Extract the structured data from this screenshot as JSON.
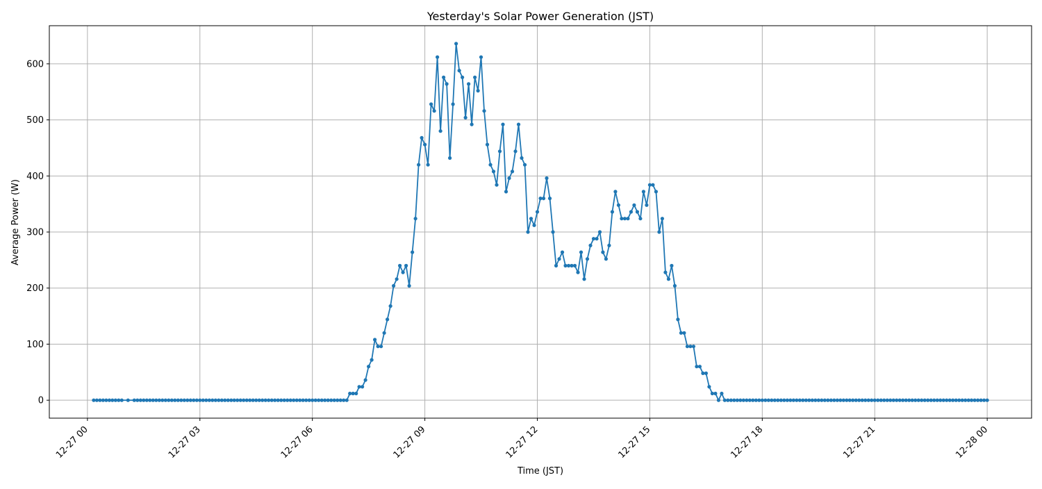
{
  "chart_data": {
    "type": "line",
    "title": "Yesterday's Solar Power Generation (JST)",
    "xlabel": "Time (JST)",
    "ylabel": "Average Power (W)",
    "grid": true,
    "marker": "circle",
    "line_color": "#1f77b4",
    "x_ticks": [
      "12-27 00",
      "12-27 03",
      "12-27 06",
      "12-27 09",
      "12-27 12",
      "12-27 15",
      "12-27 18",
      "12-27 21",
      "12-28 00"
    ],
    "y_ticks": [
      0,
      100,
      200,
      300,
      400,
      500,
      600
    ],
    "xlim": [
      "12-26 22:59",
      "12-28 01:11"
    ],
    "ylim": [
      -32,
      668
    ],
    "night_zero_ranges": [
      {
        "from": "12-27 00:10",
        "to": "12-27 00:55"
      },
      {
        "from": "12-27 01:05",
        "to": "12-27 01:05"
      },
      {
        "from": "12-27 01:15",
        "to": "12-27 06:55"
      },
      {
        "from": "12-27 17:00",
        "to": "12-28 00:00"
      }
    ],
    "day_series": {
      "x": [
        "12-27 07:00",
        "12-27 07:05",
        "12-27 07:10",
        "12-27 07:15",
        "12-27 07:20",
        "12-27 07:25",
        "12-27 07:30",
        "12-27 07:35",
        "12-27 07:40",
        "12-27 07:45",
        "12-27 07:50",
        "12-27 07:55",
        "12-27 08:00",
        "12-27 08:05",
        "12-27 08:10",
        "12-27 08:15",
        "12-27 08:20",
        "12-27 08:25",
        "12-27 08:30",
        "12-27 08:35",
        "12-27 08:40",
        "12-27 08:45",
        "12-27 08:50",
        "12-27 08:55",
        "12-27 09:00",
        "12-27 09:05",
        "12-27 09:10",
        "12-27 09:15",
        "12-27 09:20",
        "12-27 09:25",
        "12-27 09:30",
        "12-27 09:35",
        "12-27 09:40",
        "12-27 09:45",
        "12-27 09:50",
        "12-27 09:55",
        "12-27 10:00",
        "12-27 10:05",
        "12-27 10:10",
        "12-27 10:15",
        "12-27 10:20",
        "12-27 10:25",
        "12-27 10:30",
        "12-27 10:35",
        "12-27 10:40",
        "12-27 10:45",
        "12-27 10:50",
        "12-27 10:55",
        "12-27 11:00",
        "12-27 11:05",
        "12-27 11:10",
        "12-27 11:15",
        "12-27 11:20",
        "12-27 11:25",
        "12-27 11:30",
        "12-27 11:35",
        "12-27 11:40",
        "12-27 11:45",
        "12-27 11:50",
        "12-27 11:55",
        "12-27 12:00",
        "12-27 12:05",
        "12-27 12:10",
        "12-27 12:15",
        "12-27 12:20",
        "12-27 12:25",
        "12-27 12:30",
        "12-27 12:35",
        "12-27 12:40",
        "12-27 12:45",
        "12-27 12:50",
        "12-27 12:55",
        "12-27 13:00",
        "12-27 13:05",
        "12-27 13:10",
        "12-27 13:15",
        "12-27 13:20",
        "12-27 13:25",
        "12-27 13:30",
        "12-27 13:35",
        "12-27 13:40",
        "12-27 13:45",
        "12-27 13:50",
        "12-27 13:55",
        "12-27 14:00",
        "12-27 14:05",
        "12-27 14:10",
        "12-27 14:15",
        "12-27 14:20",
        "12-27 14:25",
        "12-27 14:30",
        "12-27 14:35",
        "12-27 14:40",
        "12-27 14:45",
        "12-27 14:50",
        "12-27 14:55",
        "12-27 15:00",
        "12-27 15:05",
        "12-27 15:10",
        "12-27 15:15",
        "12-27 15:20",
        "12-27 15:25",
        "12-27 15:30",
        "12-27 15:35",
        "12-27 15:40",
        "12-27 15:45",
        "12-27 15:50",
        "12-27 15:55",
        "12-27 16:00",
        "12-27 16:05",
        "12-27 16:10",
        "12-27 16:15",
        "12-27 16:20",
        "12-27 16:25",
        "12-27 16:30",
        "12-27 16:35",
        "12-27 16:40",
        "12-27 16:45",
        "12-27 16:50",
        "12-27 16:55"
      ],
      "y": [
        12,
        12,
        12,
        24,
        24,
        36,
        60,
        72,
        108,
        96,
        96,
        120,
        144,
        168,
        204,
        216,
        240,
        228,
        240,
        204,
        264,
        324,
        420,
        468,
        456,
        420,
        528,
        516,
        612,
        480,
        576,
        564,
        432,
        528,
        636,
        588,
        576,
        504,
        564,
        492,
        576,
        552,
        612,
        516,
        456,
        420,
        408,
        384,
        444,
        492,
        372,
        396,
        408,
        444,
        492,
        432,
        420,
        300,
        324,
        312,
        336,
        360,
        360,
        396,
        360,
        300,
        240,
        252,
        264,
        240,
        240,
        240,
        240,
        228,
        264,
        216,
        252,
        276,
        288,
        288,
        300,
        264,
        252,
        276,
        336,
        372,
        348,
        324,
        324,
        324,
        336,
        348,
        336,
        324,
        372,
        348,
        384,
        384,
        372,
        300,
        324,
        228,
        216,
        240,
        204,
        144,
        120,
        120,
        96,
        96,
        96,
        60,
        60,
        48,
        48,
        24,
        12,
        12,
        0,
        12
      ]
    }
  }
}
